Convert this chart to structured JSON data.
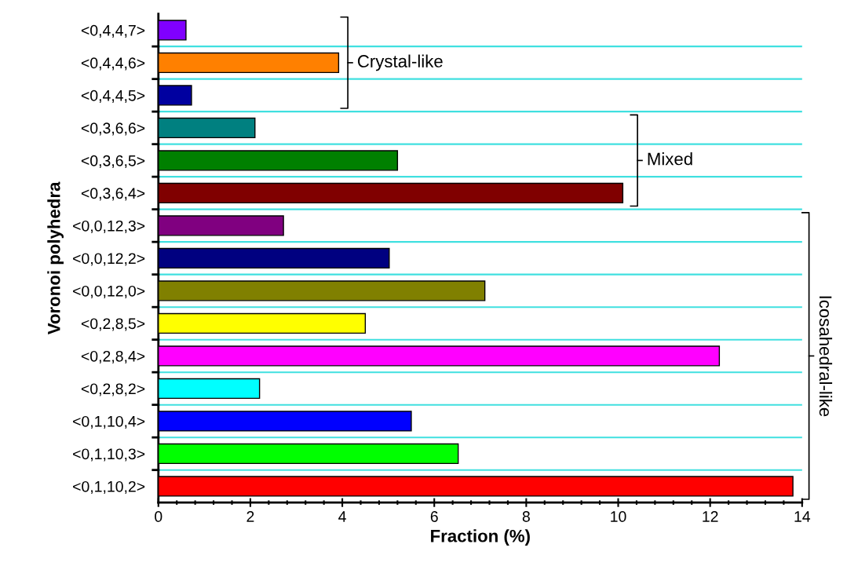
{
  "chart_data": {
    "type": "bar",
    "orientation": "horizontal",
    "xlabel": "Fraction (%)",
    "ylabel": "Voronoi polyhedra",
    "categories": [
      "<0,4,4,7>",
      "<0,4,4,6>",
      "<0,4,4,5>",
      "<0,3,6,6>",
      "<0,3,6,5>",
      "<0,3,6,4>",
      "<0,0,12,3>",
      "<0,0,12,2>",
      "<0,0,12,0>",
      "<0,2,8,5>",
      "<0,2,8,4>",
      "<0,2,8,2>",
      "<0,1,10,4>",
      "<0,1,10,3>",
      "<0,1,10,2>"
    ],
    "values": [
      0.6,
      3.92,
      0.72,
      2.1,
      5.2,
      10.1,
      2.72,
      5.02,
      7.1,
      4.5,
      12.2,
      2.2,
      5.5,
      6.52,
      13.8
    ],
    "colors": [
      "#8000ff",
      "#ff8000",
      "#0000a0",
      "#008080",
      "#008000",
      "#800000",
      "#800080",
      "#000080",
      "#808000",
      "#ffff00",
      "#ff00ff",
      "#00ffff",
      "#0000ff",
      "#00ff00",
      "#ff0000"
    ],
    "xlim": [
      0,
      14
    ],
    "xticks": [
      0,
      2,
      4,
      6,
      8,
      10,
      12,
      14
    ],
    "grid": "y",
    "annotations": [
      "Crystal-like",
      "Mixed",
      "Icosahedral-like"
    ]
  }
}
